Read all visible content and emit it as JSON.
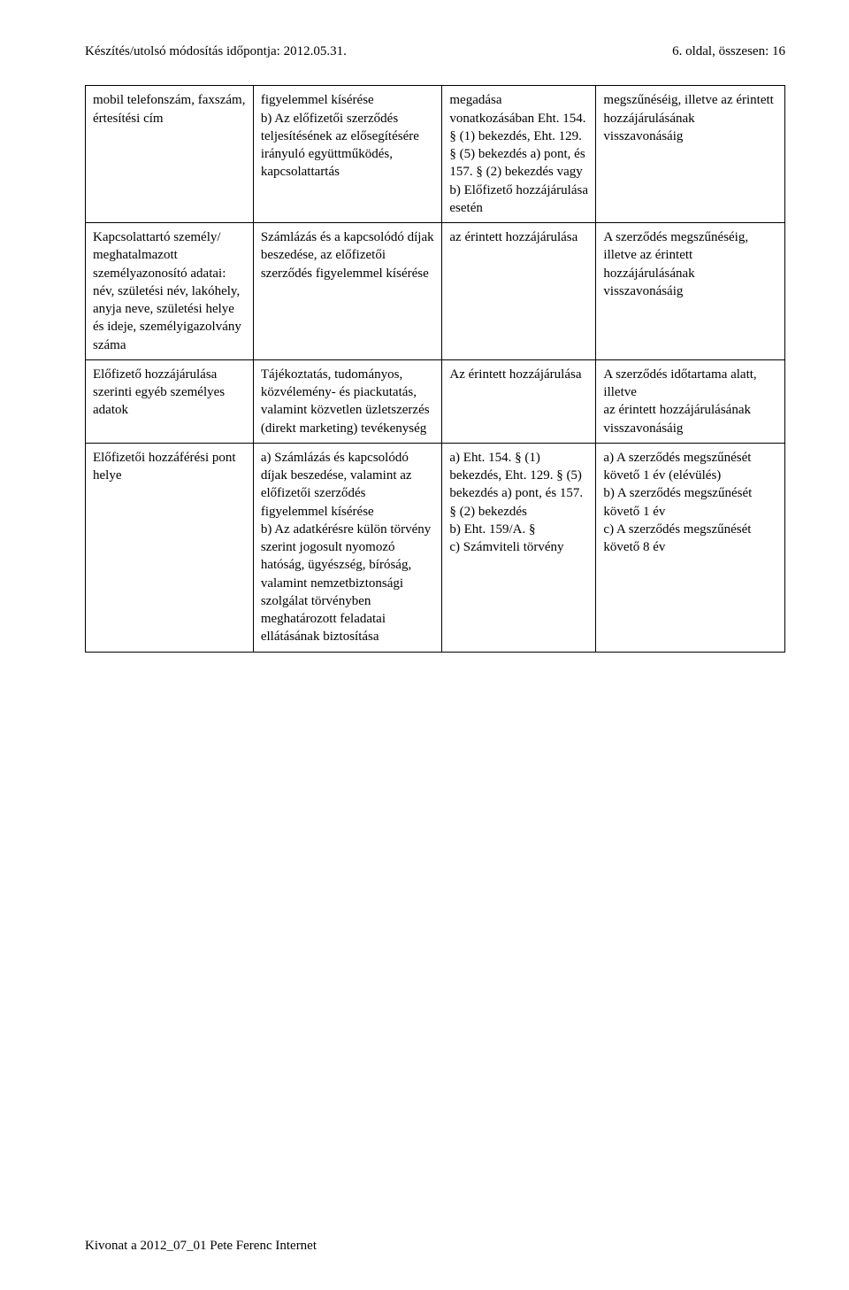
{
  "header": {
    "left": "Készítés/utolsó módosítás időpontja: 2012.05.31.",
    "right": "6. oldal, összesen: 16"
  },
  "table": {
    "rows": [
      {
        "c1": "mobil telefonszám, faxszám, értesítési cím",
        "c2": "figyelemmel kísérése\nb) Az előfizetői szerződés teljesítésének az elősegítésére irányuló együttműködés, kapcsolattartás",
        "c3": "megadása vonatkozásában Eht. 154. § (1) bekezdés, Eht. 129. § (5) bekezdés a) pont, és 157. § (2) bekezdés vagy\nb) Előfizető hozzájárulása esetén",
        "c4": "megszűnéséig, illetve az érintett hozzájárulásának visszavonásáig"
      },
      {
        "c1": "Kapcsolattartó személy/ meghatalmazott személyazonosító adatai:\nnév, születési név, lakóhely, anyja neve, születési helye és ideje, személyigazolvány száma",
        "c2": "Számlázás és a kapcsolódó díjak beszedése, az előfizetői szerződés figyelemmel kísérése",
        "c3": "az érintett hozzájárulása",
        "c4": "A szerződés megszűnéséig, illetve az érintett hozzájárulásának visszavonásáig"
      },
      {
        "c1": "Előfizető hozzájárulása szerinti egyéb személyes adatok",
        "c2": "Tájékoztatás, tudományos, közvélemény- és piackutatás, valamint közvetlen üzletszerzés (direkt marketing) tevékenység",
        "c3": "Az érintett hozzájárulása",
        "c4": "A szerződés időtartama alatt, illetve\naz érintett hozzájárulásának visszavonásáig"
      },
      {
        "c1": "Előfizetői hozzáférési pont\nhelye",
        "c2": "a) Számlázás és kapcsolódó díjak beszedése, valamint az előfizetői szerződés figyelemmel kísérése\nb) Az adatkérésre külön törvény szerint jogosult nyomozó hatóság, ügyészség, bíróság, valamint nemzetbiztonsági szolgálat törvényben meghatározott feladatai ellátásának biztosítása",
        "c3": "a) Eht. 154. § (1) bekezdés, Eht. 129. § (5) bekezdés a) pont, és 157. § (2) bekezdés\nb) Eht. 159/A. §\nc) Számviteli törvény",
        "c4": "a) A szerződés megszűnését követő 1 év (elévülés)\nb) A szerződés megszűnését követő 1 év\nc) A szerződés megszűnését követő 8 év"
      }
    ]
  },
  "footer": "Kivonat a 2012_07_01 Pete Ferenc Internet"
}
